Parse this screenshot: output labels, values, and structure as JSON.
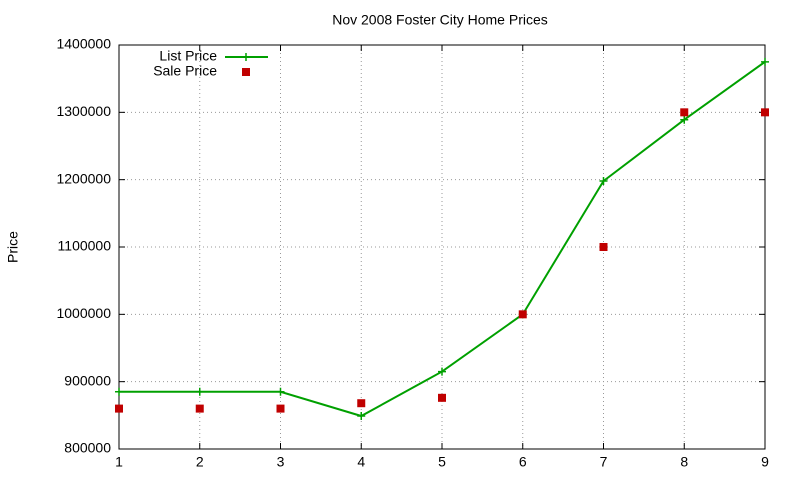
{
  "chart_data": {
    "type": "line",
    "title": "Nov 2008 Foster City Home Prices",
    "y_label": "Price",
    "x": [
      1,
      2,
      3,
      4,
      5,
      6,
      7,
      8,
      9
    ],
    "series": [
      {
        "name": "List Price",
        "color": "#00a000",
        "style": "linespoints",
        "values": [
          885000,
          885000,
          885000,
          849000,
          915000,
          1000000,
          1198000,
          1289000,
          1375000
        ]
      },
      {
        "name": "Sale Price",
        "color": "#c00000",
        "style": "points",
        "values": [
          860000,
          860000,
          860000,
          868000,
          876000,
          1000000,
          1100000,
          1300000,
          1300000
        ]
      }
    ],
    "xlim": [
      1,
      9
    ],
    "xticks": [
      1,
      2,
      3,
      4,
      5,
      6,
      7,
      8,
      9
    ],
    "ylim": [
      800000,
      1400000
    ],
    "yticks": [
      800000,
      900000,
      1000000,
      1100000,
      1200000,
      1300000,
      1400000
    ],
    "grid": true,
    "legend": "top-left"
  }
}
